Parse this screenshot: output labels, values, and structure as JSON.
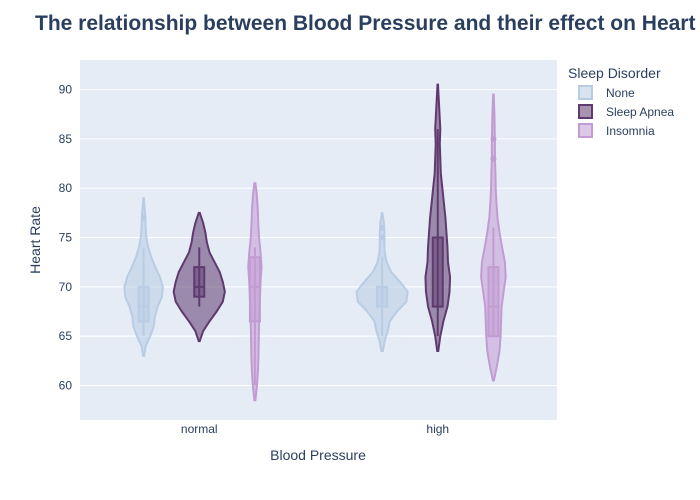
{
  "chart_data": {
    "type": "violin",
    "title": "The relationship between Blood Pressure and their effect on Heart Rate",
    "xlabel": "Blood Pressure",
    "ylabel": "Heart Rate",
    "categories": [
      "normal",
      "high"
    ],
    "yticks": [
      60,
      65,
      70,
      75,
      80,
      85,
      90
    ],
    "ylim": [
      56.5,
      93
    ],
    "legend": {
      "title": "Sleep Disorder",
      "position": "right"
    },
    "series": [
      {
        "name": "None",
        "color": "#b8cce4",
        "groups": [
          {
            "category": "normal",
            "min": 65,
            "q1": 66.5,
            "median": 68,
            "q3": 70,
            "max": 74,
            "outliers": [
              77
            ],
            "kde_min": 63,
            "kde_max": 79,
            "profile": [
              [
                63,
                0.02
              ],
              [
                64,
                0.08
              ],
              [
                65,
                0.26
              ],
              [
                66,
                0.4
              ],
              [
                67,
                0.44
              ],
              [
                68,
                0.55
              ],
              [
                69,
                0.72
              ],
              [
                70,
                0.75
              ],
              [
                71,
                0.64
              ],
              [
                72,
                0.46
              ],
              [
                73,
                0.3
              ],
              [
                74,
                0.18
              ],
              [
                75,
                0.11
              ],
              [
                76,
                0.08
              ],
              [
                77,
                0.07
              ],
              [
                78,
                0.04
              ],
              [
                79,
                0.01
              ]
            ]
          },
          {
            "category": "high",
            "min": 65,
            "q1": 68,
            "median": 68,
            "q3": 70,
            "max": 73,
            "outliers": [
              75,
              76
            ],
            "kde_min": 63.5,
            "kde_max": 77.5,
            "profile": [
              [
                63.5,
                0.03
              ],
              [
                64.5,
                0.1
              ],
              [
                65.5,
                0.22
              ],
              [
                66.5,
                0.3
              ],
              [
                67.5,
                0.58
              ],
              [
                68.5,
                0.95
              ],
              [
                69.5,
                1.0
              ],
              [
                70.5,
                0.7
              ],
              [
                71.5,
                0.36
              ],
              [
                72.5,
                0.18
              ],
              [
                73.5,
                0.1
              ],
              [
                74.5,
                0.09
              ],
              [
                75.5,
                0.09
              ],
              [
                76.5,
                0.07
              ],
              [
                77.5,
                0.01
              ]
            ]
          }
        ]
      },
      {
        "name": "Sleep Apnea",
        "color": "#5e3a6e",
        "groups": [
          {
            "category": "normal",
            "min": 68,
            "q1": 69,
            "median": 70,
            "q3": 72,
            "max": 74,
            "outliers": [],
            "kde_min": 64.5,
            "kde_max": 77.5,
            "profile": [
              [
                64.5,
                0.02
              ],
              [
                65.5,
                0.15
              ],
              [
                66.5,
                0.4
              ],
              [
                67.5,
                0.68
              ],
              [
                68.5,
                0.92
              ],
              [
                69.5,
                1.0
              ],
              [
                70.5,
                0.92
              ],
              [
                71.5,
                0.8
              ],
              [
                72.5,
                0.6
              ],
              [
                73.5,
                0.4
              ],
              [
                74.5,
                0.3
              ],
              [
                75.5,
                0.24
              ],
              [
                76.5,
                0.15
              ],
              [
                77.5,
                0.02
              ]
            ]
          },
          {
            "category": "high",
            "min": 65,
            "q1": 68,
            "median": 68,
            "q3": 75,
            "max": 86,
            "outliers": [],
            "kde_min": 63.5,
            "kde_max": 90.5,
            "profile": [
              [
                63.5,
                0.02
              ],
              [
                65,
                0.1
              ],
              [
                66.5,
                0.22
              ],
              [
                68,
                0.38
              ],
              [
                69.5,
                0.46
              ],
              [
                71,
                0.48
              ],
              [
                72.5,
                0.4
              ],
              [
                74,
                0.38
              ],
              [
                75.5,
                0.34
              ],
              [
                77,
                0.3
              ],
              [
                78.5,
                0.24
              ],
              [
                80,
                0.18
              ],
              [
                81.5,
                0.12
              ],
              [
                83,
                0.1
              ],
              [
                84.5,
                0.08
              ],
              [
                86,
                0.1
              ],
              [
                87.5,
                0.07
              ],
              [
                89,
                0.04
              ],
              [
                90.5,
                0.01
              ]
            ]
          }
        ]
      },
      {
        "name": "Insomnia",
        "color": "#c39bd3",
        "groups": [
          {
            "category": "normal",
            "min": 60,
            "q1": 66.5,
            "median": 70,
            "q3": 73,
            "max": 74,
            "outliers": [],
            "kde_min": 58.5,
            "kde_max": 80.5,
            "profile": [
              [
                58.5,
                0.02
              ],
              [
                60,
                0.08
              ],
              [
                61.5,
                0.12
              ],
              [
                63,
                0.14
              ],
              [
                64.5,
                0.15
              ],
              [
                66,
                0.16
              ],
              [
                67.5,
                0.17
              ],
              [
                69,
                0.2
              ],
              [
                70.5,
                0.22
              ],
              [
                72,
                0.26
              ],
              [
                73.5,
                0.22
              ],
              [
                75,
                0.16
              ],
              [
                76.5,
                0.13
              ],
              [
                78,
                0.11
              ],
              [
                79.5,
                0.07
              ],
              [
                80.5,
                0.02
              ]
            ]
          },
          {
            "category": "high",
            "min": 65,
            "q1": 65,
            "median": 68,
            "q3": 72,
            "max": 76,
            "outliers": [
              83,
              85
            ],
            "kde_min": 60.5,
            "kde_max": 89.5,
            "profile": [
              [
                60.5,
                0.02
              ],
              [
                62,
                0.14
              ],
              [
                63.5,
                0.24
              ],
              [
                65,
                0.28
              ],
              [
                66.5,
                0.3
              ],
              [
                68,
                0.32
              ],
              [
                69.5,
                0.4
              ],
              [
                71,
                0.48
              ],
              [
                72.5,
                0.45
              ],
              [
                74,
                0.34
              ],
              [
                75.5,
                0.24
              ],
              [
                77,
                0.16
              ],
              [
                78.5,
                0.12
              ],
              [
                80,
                0.09
              ],
              [
                81.5,
                0.08
              ],
              [
                83,
                0.06
              ],
              [
                84.5,
                0.06
              ],
              [
                86,
                0.05
              ],
              [
                87.5,
                0.04
              ],
              [
                89.5,
                0.01
              ]
            ]
          }
        ]
      }
    ]
  }
}
